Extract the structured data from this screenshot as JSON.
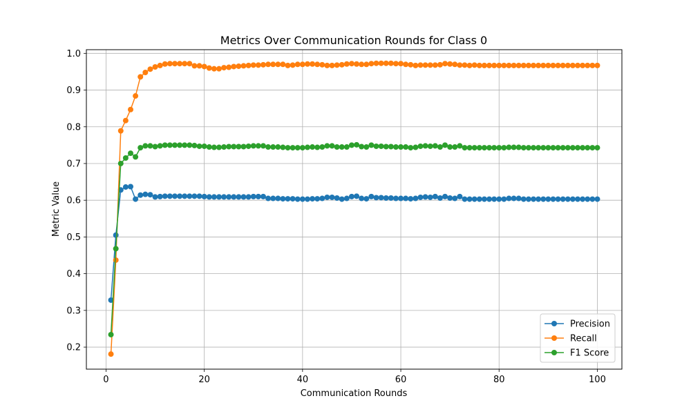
{
  "chart_data": {
    "type": "line",
    "title": "Metrics Over Communication Rounds for Class 0",
    "xlabel": "Communication Rounds",
    "ylabel": "Metric Value",
    "xlim": [
      -4,
      105
    ],
    "ylim": [
      0.14,
      1.01
    ],
    "xticks": [
      0,
      20,
      40,
      60,
      80,
      100
    ],
    "yticks": [
      0.2,
      0.3,
      0.4,
      0.5,
      0.6,
      0.7,
      0.8,
      0.9,
      1.0
    ],
    "xtick_labels": [
      "0",
      "20",
      "40",
      "60",
      "80",
      "100"
    ],
    "ytick_labels": [
      "0.2",
      "0.3",
      "0.4",
      "0.5",
      "0.6",
      "0.7",
      "0.8",
      "0.9",
      "1.0"
    ],
    "grid": true,
    "legend_position": "lower-right",
    "x": [
      1,
      2,
      3,
      4,
      5,
      6,
      7,
      8,
      9,
      10,
      11,
      12,
      13,
      14,
      15,
      16,
      17,
      18,
      19,
      20,
      21,
      22,
      23,
      24,
      25,
      26,
      27,
      28,
      29,
      30,
      31,
      32,
      33,
      34,
      35,
      36,
      37,
      38,
      39,
      40,
      41,
      42,
      43,
      44,
      45,
      46,
      47,
      48,
      49,
      50,
      51,
      52,
      53,
      54,
      55,
      56,
      57,
      58,
      59,
      60,
      61,
      62,
      63,
      64,
      65,
      66,
      67,
      68,
      69,
      70,
      71,
      72,
      73,
      74,
      75,
      76,
      77,
      78,
      79,
      80,
      81,
      82,
      83,
      84,
      85,
      86,
      87,
      88,
      89,
      90,
      91,
      92,
      93,
      94,
      95,
      96,
      97,
      98,
      99,
      100
    ],
    "series": [
      {
        "name": "Precision",
        "color": "#1f77b4",
        "values": [
          0.328,
          0.505,
          0.628,
          0.636,
          0.637,
          0.603,
          0.614,
          0.616,
          0.615,
          0.609,
          0.61,
          0.611,
          0.611,
          0.611,
          0.611,
          0.611,
          0.611,
          0.611,
          0.611,
          0.61,
          0.609,
          0.609,
          0.609,
          0.609,
          0.609,
          0.609,
          0.609,
          0.609,
          0.609,
          0.61,
          0.61,
          0.61,
          0.605,
          0.605,
          0.605,
          0.604,
          0.604,
          0.604,
          0.603,
          0.603,
          0.603,
          0.604,
          0.604,
          0.605,
          0.608,
          0.608,
          0.606,
          0.603,
          0.605,
          0.61,
          0.611,
          0.605,
          0.604,
          0.61,
          0.607,
          0.607,
          0.606,
          0.606,
          0.605,
          0.605,
          0.605,
          0.604,
          0.605,
          0.608,
          0.609,
          0.608,
          0.61,
          0.606,
          0.61,
          0.606,
          0.605,
          0.61,
          0.603,
          0.603,
          0.603,
          0.603,
          0.603,
          0.603,
          0.603,
          0.603,
          0.603,
          0.605,
          0.605,
          0.605,
          0.603,
          0.603,
          0.603,
          0.603,
          0.603,
          0.603,
          0.603,
          0.603,
          0.603,
          0.603,
          0.603,
          0.603,
          0.603,
          0.603,
          0.603,
          0.603
        ]
      },
      {
        "name": "Recall",
        "color": "#ff7f0e",
        "values": [
          0.181,
          0.437,
          0.789,
          0.817,
          0.847,
          0.884,
          0.936,
          0.948,
          0.957,
          0.963,
          0.967,
          0.971,
          0.972,
          0.972,
          0.972,
          0.972,
          0.972,
          0.966,
          0.966,
          0.964,
          0.96,
          0.958,
          0.958,
          0.961,
          0.962,
          0.964,
          0.965,
          0.966,
          0.967,
          0.968,
          0.968,
          0.969,
          0.97,
          0.97,
          0.97,
          0.97,
          0.967,
          0.968,
          0.97,
          0.97,
          0.971,
          0.971,
          0.97,
          0.969,
          0.967,
          0.967,
          0.968,
          0.969,
          0.971,
          0.972,
          0.971,
          0.97,
          0.97,
          0.972,
          0.973,
          0.973,
          0.973,
          0.973,
          0.972,
          0.972,
          0.97,
          0.969,
          0.967,
          0.968,
          0.968,
          0.968,
          0.968,
          0.969,
          0.972,
          0.971,
          0.97,
          0.968,
          0.968,
          0.967,
          0.968,
          0.967,
          0.967,
          0.967,
          0.967,
          0.967,
          0.967,
          0.967,
          0.967,
          0.967,
          0.967,
          0.967,
          0.967,
          0.967,
          0.967,
          0.967,
          0.967,
          0.967,
          0.967,
          0.967,
          0.967,
          0.967,
          0.967,
          0.967,
          0.967,
          0.967
        ]
      },
      {
        "name": "F1 Score",
        "color": "#2ca02c",
        "values": [
          0.234,
          0.468,
          0.7,
          0.715,
          0.728,
          0.718,
          0.743,
          0.748,
          0.748,
          0.746,
          0.748,
          0.75,
          0.75,
          0.75,
          0.75,
          0.75,
          0.75,
          0.749,
          0.747,
          0.747,
          0.745,
          0.744,
          0.744,
          0.745,
          0.746,
          0.746,
          0.746,
          0.746,
          0.747,
          0.748,
          0.748,
          0.748,
          0.745,
          0.745,
          0.745,
          0.744,
          0.743,
          0.743,
          0.743,
          0.743,
          0.744,
          0.745,
          0.744,
          0.745,
          0.748,
          0.748,
          0.745,
          0.745,
          0.745,
          0.75,
          0.751,
          0.746,
          0.745,
          0.75,
          0.747,
          0.747,
          0.746,
          0.746,
          0.745,
          0.745,
          0.745,
          0.743,
          0.744,
          0.747,
          0.748,
          0.747,
          0.748,
          0.745,
          0.75,
          0.745,
          0.745,
          0.748,
          0.743,
          0.743,
          0.743,
          0.743,
          0.743,
          0.743,
          0.743,
          0.743,
          0.743,
          0.744,
          0.744,
          0.744,
          0.743,
          0.743,
          0.743,
          0.743,
          0.743,
          0.743,
          0.743,
          0.743,
          0.743,
          0.743,
          0.743,
          0.743,
          0.743,
          0.743,
          0.743,
          0.743
        ]
      }
    ]
  }
}
